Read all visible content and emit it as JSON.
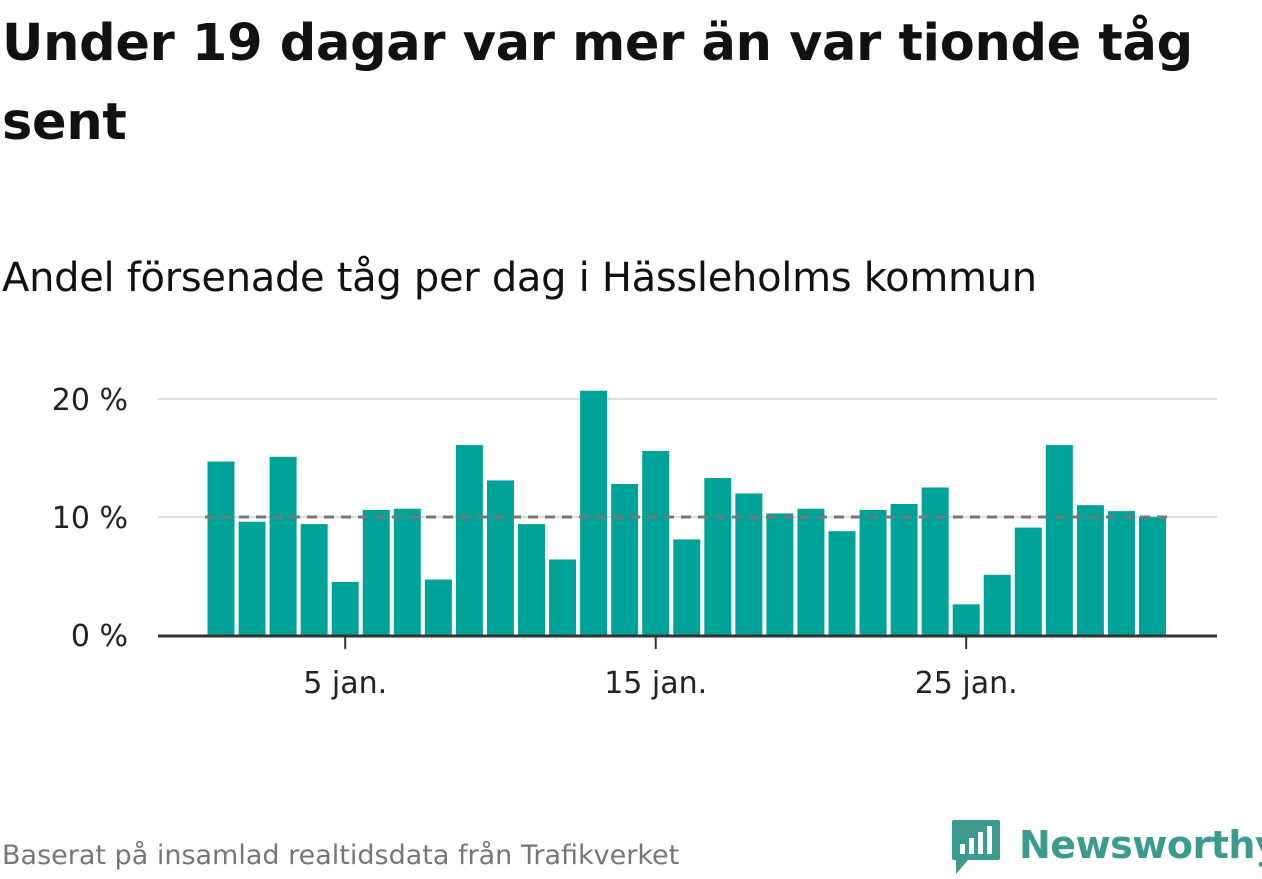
{
  "title": "Under 19 dagar var mer än var tionde tåg sent",
  "subtitle": "Andel försenade tåg per dag i Hässleholms kommun",
  "footer": {
    "source": "Baserat på insamlad realtidsdata från Trafikverket",
    "brand": "Newsworthy",
    "brand_icon": "newsworthy-chart-bubble-icon"
  },
  "colors": {
    "bar": "#00a398",
    "reference_line": "#777777",
    "grid": "#dddddd",
    "axis": "#333333",
    "brand": "#3d9b8e"
  },
  "chart_data": {
    "type": "bar",
    "x": [
      1,
      2,
      3,
      4,
      5,
      6,
      7,
      8,
      9,
      10,
      11,
      12,
      13,
      14,
      15,
      16,
      17,
      18,
      19,
      20,
      21,
      22,
      23,
      24,
      25,
      26,
      27,
      28,
      29,
      30,
      31
    ],
    "values": [
      14.7,
      9.6,
      15.1,
      9.4,
      4.5,
      10.6,
      10.7,
      4.7,
      16.1,
      13.1,
      9.4,
      6.4,
      20.7,
      12.8,
      15.6,
      8.1,
      13.3,
      12.0,
      10.3,
      10.7,
      8.8,
      10.6,
      11.1,
      12.5,
      2.6,
      5.1,
      9.1,
      16.1,
      11.0,
      10.5,
      10.0
    ],
    "ylim": [
      0,
      22
    ],
    "yticks": [
      0,
      10,
      20
    ],
    "ytick_labels": [
      "0 %",
      "10 %",
      "20 %"
    ],
    "xticks": [
      5,
      15,
      25
    ],
    "xtick_labels": [
      "5 jan.",
      "15 jan.",
      "25 jan."
    ],
    "reference_line": 10,
    "grid": true,
    "legend": false
  }
}
